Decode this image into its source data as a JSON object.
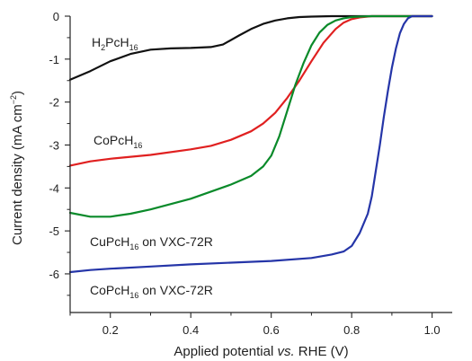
{
  "chart_data": {
    "type": "line",
    "title": "",
    "xlabel_parts": [
      "Applied potential ",
      "vs.",
      " RHE (V)"
    ],
    "ylabel_parts": [
      "Current density (mA cm",
      "−2",
      ")"
    ],
    "xlim": [
      0.1,
      1.05
    ],
    "ylim": [
      -6.9,
      0.0
    ],
    "xticks": [
      0.2,
      0.4,
      0.6,
      0.8,
      1.0
    ],
    "xtick_labels": [
      "0.2",
      "0.4",
      "0.6",
      "0.8",
      "1.0"
    ],
    "yticks": [
      0,
      -1,
      -2,
      -3,
      -4,
      -5,
      -6
    ],
    "ytick_labels": [
      "0",
      "-1",
      "-2",
      "-3",
      "-4",
      "-5",
      "-6"
    ],
    "grid": false,
    "legend": "none (inline labels)",
    "series": [
      {
        "name": "H2PcH16",
        "label_parts": [
          "H",
          "2",
          "PcH",
          "16",
          ""
        ],
        "color": "#111111",
        "x": [
          0.1,
          0.15,
          0.2,
          0.25,
          0.3,
          0.35,
          0.4,
          0.45,
          0.48,
          0.52,
          0.55,
          0.58,
          0.61,
          0.64,
          0.67,
          0.7,
          0.75,
          0.8,
          1.0
        ],
        "y": [
          -1.48,
          -1.28,
          -1.05,
          -0.88,
          -0.78,
          -0.75,
          -0.74,
          -0.72,
          -0.66,
          -0.45,
          -0.3,
          -0.18,
          -0.1,
          -0.05,
          -0.02,
          -0.01,
          0.0,
          0.0,
          0.0
        ]
      },
      {
        "name": "CoPcH16",
        "label_parts": [
          "CoPcH",
          "16",
          ""
        ],
        "color": "#e02020",
        "x": [
          0.1,
          0.15,
          0.2,
          0.3,
          0.4,
          0.45,
          0.5,
          0.55,
          0.58,
          0.61,
          0.64,
          0.67,
          0.7,
          0.73,
          0.76,
          0.78,
          0.8,
          0.82,
          0.85,
          1.0
        ],
        "y": [
          -3.48,
          -3.38,
          -3.32,
          -3.23,
          -3.1,
          -3.02,
          -2.88,
          -2.68,
          -2.5,
          -2.25,
          -1.9,
          -1.5,
          -1.05,
          -0.62,
          -0.3,
          -0.15,
          -0.07,
          -0.03,
          0.0,
          0.0
        ]
      },
      {
        "name": "CuPcH16 on VXC-72R",
        "label_parts": [
          "CuPcH",
          "16",
          " on VXC-72R"
        ],
        "color": "#0a8a2a",
        "x": [
          0.1,
          0.15,
          0.2,
          0.25,
          0.3,
          0.4,
          0.5,
          0.55,
          0.58,
          0.6,
          0.62,
          0.64,
          0.66,
          0.68,
          0.7,
          0.72,
          0.74,
          0.76,
          0.78,
          0.8,
          0.82,
          0.85,
          1.0
        ],
        "y": [
          -4.58,
          -4.67,
          -4.67,
          -4.6,
          -4.5,
          -4.25,
          -3.92,
          -3.72,
          -3.5,
          -3.25,
          -2.8,
          -2.2,
          -1.6,
          -1.1,
          -0.68,
          -0.38,
          -0.2,
          -0.1,
          -0.05,
          -0.02,
          -0.01,
          0.0,
          0.0
        ]
      },
      {
        "name": "CoPcH16 on VXC-72R",
        "label_parts": [
          "CoPcH",
          "16",
          " on VXC-72R"
        ],
        "color": "#2535a8",
        "x": [
          0.1,
          0.15,
          0.2,
          0.3,
          0.4,
          0.5,
          0.6,
          0.7,
          0.75,
          0.78,
          0.8,
          0.82,
          0.84,
          0.85,
          0.86,
          0.87,
          0.88,
          0.89,
          0.9,
          0.91,
          0.92,
          0.93,
          0.94,
          0.95,
          1.0
        ],
        "y": [
          -5.96,
          -5.91,
          -5.88,
          -5.83,
          -5.78,
          -5.74,
          -5.7,
          -5.63,
          -5.55,
          -5.48,
          -5.35,
          -5.05,
          -4.6,
          -4.2,
          -3.6,
          -3.0,
          -2.35,
          -1.75,
          -1.2,
          -0.75,
          -0.4,
          -0.18,
          -0.05,
          0.0,
          0.0
        ]
      }
    ]
  }
}
